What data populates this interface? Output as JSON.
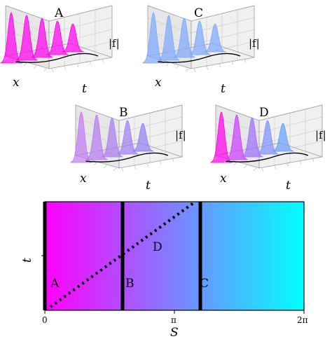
{
  "panels": [
    {
      "label": "A",
      "colors": [
        "#ff00ee",
        "#ff00ee",
        "#ff00ee",
        "#ff00ee",
        "#ff00ee"
      ]
    },
    {
      "label": "C",
      "colors": [
        "#7fa8ff",
        "#7fa8ff",
        "#7fa8ff",
        "#7fa8ff",
        "#7fa8ff"
      ]
    },
    {
      "label": "B",
      "colors": [
        "#c47bf5",
        "#b87cf0",
        "#ad7df0",
        "#a27ef0",
        "#977fef"
      ]
    },
    {
      "label": "D",
      "colors": [
        "#ff00ee",
        "#cc40ff",
        "#a070ff",
        "#8090ff",
        "#66a0ff"
      ]
    }
  ],
  "surface_axes": {
    "x": "x",
    "t": "t",
    "z": "|f|"
  },
  "bottom": {
    "ylabel": "t",
    "xlabel": "S",
    "ticks": [
      "0",
      "π",
      "2π"
    ],
    "gradient": [
      "#ff00ff",
      "#00ffff"
    ],
    "labels": {
      "A": "A",
      "B": "B",
      "C": "C",
      "D": "D"
    },
    "lines_S_over_pi": [
      0.0,
      0.6,
      1.2
    ]
  }
}
